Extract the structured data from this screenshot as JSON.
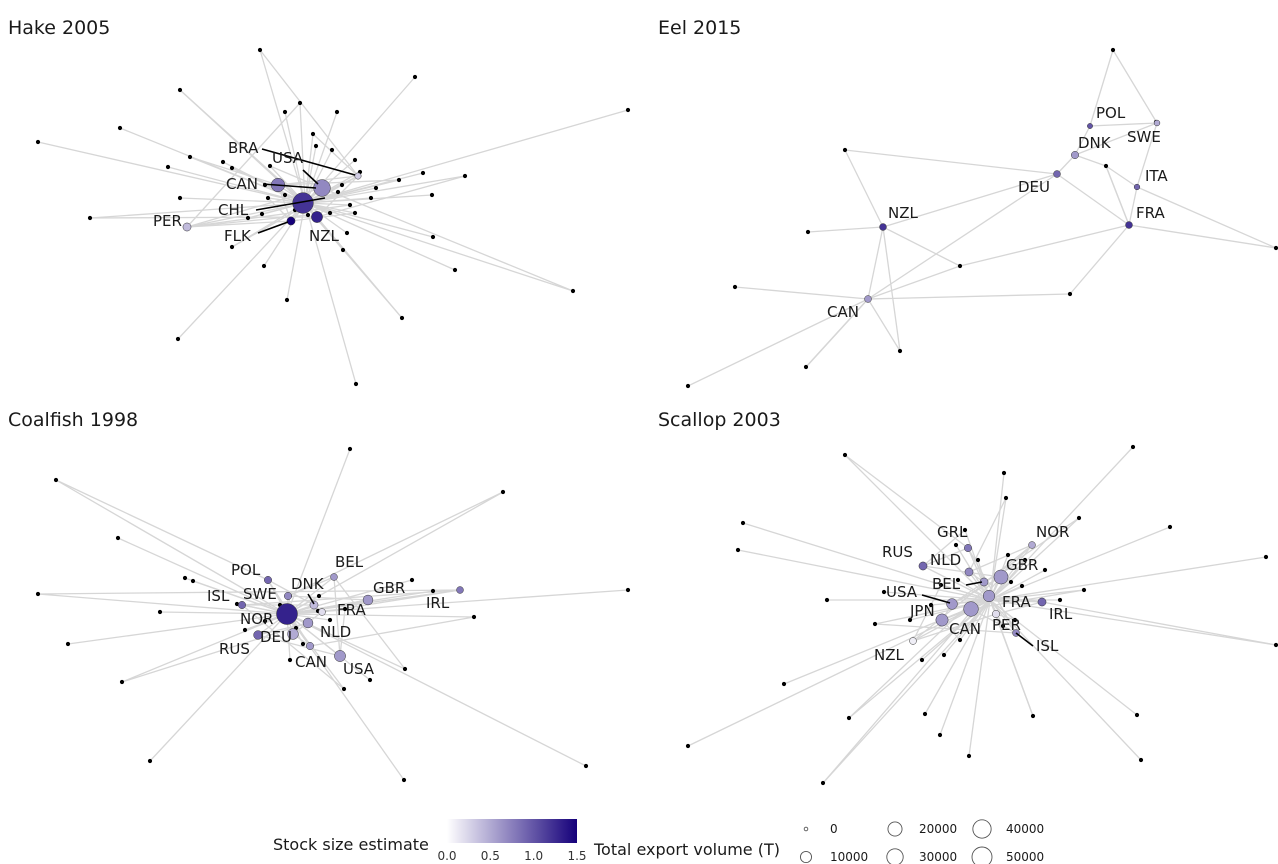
{
  "panels": [
    {
      "id": "hake",
      "title": "Hake 2005",
      "center": "H",
      "countries": [
        {
          "code": "BRA",
          "stock": 0.3,
          "volume": 1000
        },
        {
          "code": "USA",
          "stock": 0.7,
          "volume": 28000
        },
        {
          "code": "CAN",
          "stock": 0.8,
          "volume": 16000
        },
        {
          "code": "CHL",
          "stock": 1.2,
          "volume": 48000
        },
        {
          "code": "FLK",
          "stock": 1.5,
          "volume": 3000
        },
        {
          "code": "NZL",
          "stock": 1.3,
          "volume": 9000
        },
        {
          "code": "PER",
          "stock": 0.4,
          "volume": 3000
        }
      ]
    },
    {
      "id": "eel",
      "title": "Eel 2015",
      "center": "",
      "countries": [
        {
          "code": "POL",
          "stock": 1.0,
          "volume": 300
        },
        {
          "code": "SWE",
          "stock": 0.5,
          "volume": 600
        },
        {
          "code": "DNK",
          "stock": 0.6,
          "volume": 2000
        },
        {
          "code": "ITA",
          "stock": 0.9,
          "volume": 500
        },
        {
          "code": "DEU",
          "stock": 0.9,
          "volume": 1500
        },
        {
          "code": "FRA",
          "stock": 1.2,
          "volume": 1500
        },
        {
          "code": "NZL",
          "stock": 1.2,
          "volume": 1500
        },
        {
          "code": "CAN",
          "stock": 0.6,
          "volume": 1500
        }
      ]
    },
    {
      "id": "coalfish",
      "title": "Coalfish 1998",
      "center": "",
      "countries": [
        {
          "code": "POL",
          "stock": 0.9,
          "volume": 2000
        },
        {
          "code": "BEL",
          "stock": 0.6,
          "volume": 1500
        },
        {
          "code": "DNK",
          "stock": 0.4,
          "volume": 3000
        },
        {
          "code": "SWE",
          "stock": 0.7,
          "volume": 2000
        },
        {
          "code": "ISL",
          "stock": 0.9,
          "volume": 2000
        },
        {
          "code": "GBR",
          "stock": 0.6,
          "volume": 6000
        },
        {
          "code": "IRL",
          "stock": 0.8,
          "volume": 1500
        },
        {
          "code": "NOR",
          "stock": 1.3,
          "volume": 50000
        },
        {
          "code": "FRA",
          "stock": 0.2,
          "volume": 1500
        },
        {
          "code": "NLD",
          "stock": 0.6,
          "volume": 6000
        },
        {
          "code": "DEU",
          "stock": 0.5,
          "volume": 8000
        },
        {
          "code": "RUS",
          "stock": 0.9,
          "volume": 4000
        },
        {
          "code": "CAN",
          "stock": 0.6,
          "volume": 2000
        },
        {
          "code": "USA",
          "stock": 0.6,
          "volume": 9000
        }
      ]
    },
    {
      "id": "scallop",
      "title": "Scallop 2003",
      "center": "",
      "countries": [
        {
          "code": "GRL",
          "stock": 0.8,
          "volume": 2000
        },
        {
          "code": "NOR",
          "stock": 0.5,
          "volume": 1500
        },
        {
          "code": "RUS",
          "stock": 0.9,
          "volume": 3000
        },
        {
          "code": "NLD",
          "stock": 0.7,
          "volume": 3000
        },
        {
          "code": "GBR",
          "stock": 0.6,
          "volume": 18000
        },
        {
          "code": "BEL",
          "stock": 0.6,
          "volume": 3000
        },
        {
          "code": "USA",
          "stock": 0.6,
          "volume": 8000
        },
        {
          "code": "FRA",
          "stock": 0.6,
          "volume": 10000
        },
        {
          "code": "JPN",
          "stock": 0.6,
          "volume": 12000
        },
        {
          "code": "IRL",
          "stock": 0.9,
          "volume": 3000
        },
        {
          "code": "CAN",
          "stock": 0.6,
          "volume": 20000
        },
        {
          "code": "PER",
          "stock": 0.2,
          "volume": 2000
        },
        {
          "code": "ISL",
          "stock": 0.7,
          "volume": 1500
        },
        {
          "code": "NZL",
          "stock": 0.1,
          "volume": 1500
        }
      ]
    }
  ],
  "legend": {
    "color_title": "Stock size estimate",
    "color_ticks": [
      "0.0",
      "0.5",
      "1.0",
      "1.5"
    ],
    "color_range": [
      0,
      1.5
    ],
    "color_low": "#ffffff",
    "color_high": "#15007a",
    "size_title": "Total export volume (T)",
    "size_breaks": [
      {
        "value": 0,
        "label": "0"
      },
      {
        "value": 10000,
        "label": "10000"
      },
      {
        "value": 20000,
        "label": "20000"
      },
      {
        "value": 30000,
        "label": "30000"
      },
      {
        "value": 40000,
        "label": "40000"
      },
      {
        "value": 50000,
        "label": "50000"
      }
    ]
  },
  "colors": {
    "edge": "#d6d6d6",
    "node_unlabeled": "#000000",
    "leader_line": "#000000"
  }
}
